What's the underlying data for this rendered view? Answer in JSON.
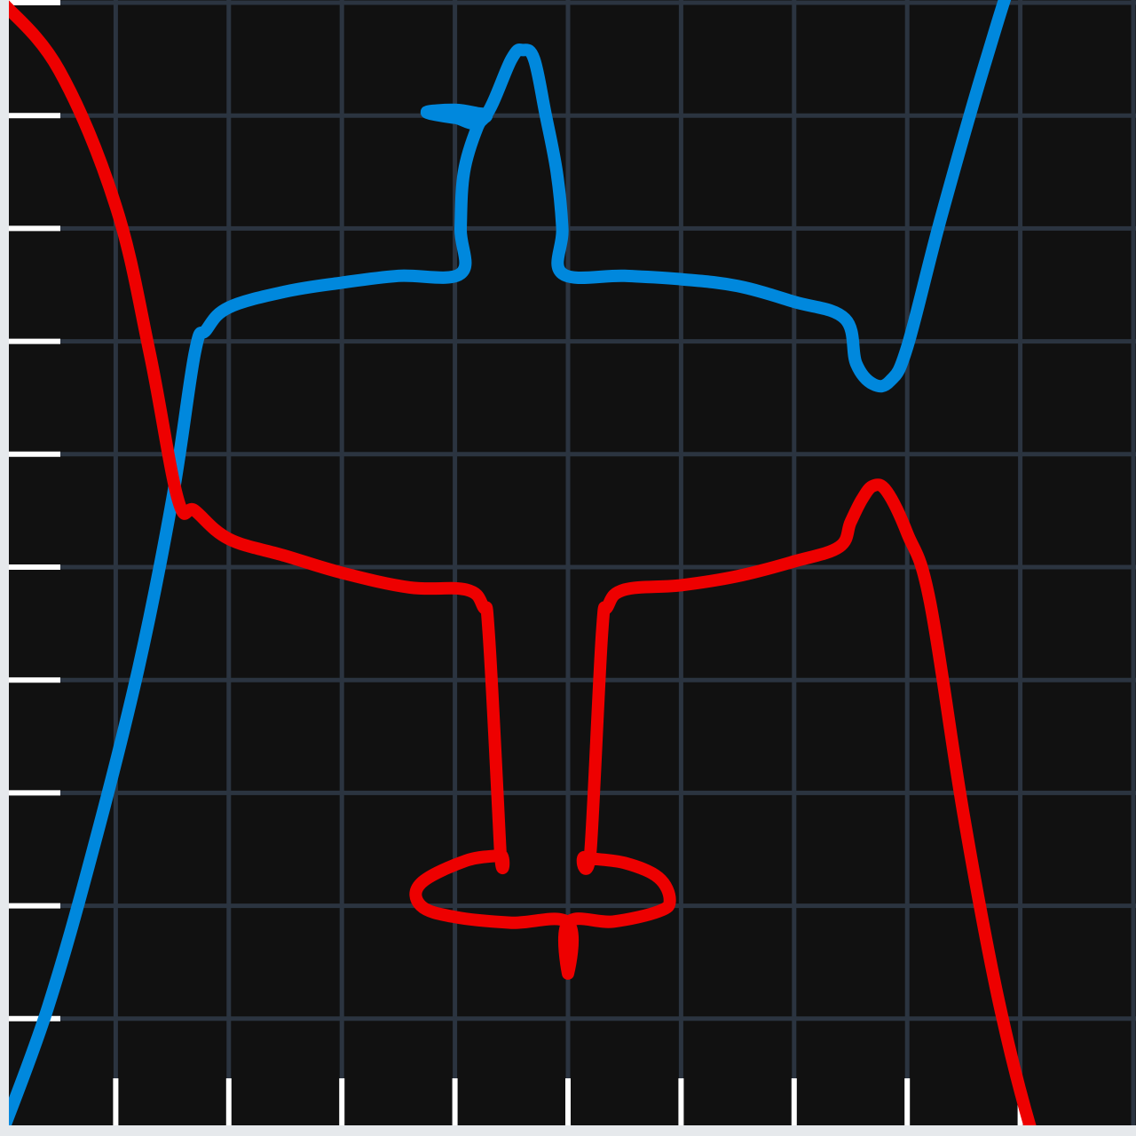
{
  "chart_data": {
    "type": "line",
    "title": "",
    "xlabel": "",
    "ylabel": "",
    "xlim": [
      -5,
      5
    ],
    "ylim": [
      -5,
      5
    ],
    "grid": true,
    "x_ticks": [
      -5,
      -4,
      -3,
      -2,
      -1,
      0,
      1,
      2,
      3,
      4,
      5
    ],
    "y_ticks": [
      -5,
      -4,
      -3,
      -2,
      -1,
      0,
      1,
      2,
      3,
      4,
      5
    ],
    "series": [
      {
        "color": "#0088dd",
        "points": [
          [
            -5,
            -5
          ],
          [
            -4.6,
            -3.9
          ],
          [
            -4.2,
            -2.5
          ],
          [
            -3.8,
            -0.9
          ],
          [
            -3.5,
            0.6
          ],
          [
            -3.3,
            1.9
          ],
          [
            -3.2,
            2.1
          ],
          [
            -3.0,
            2.3
          ],
          [
            -2.5,
            2.44
          ],
          [
            -2.0,
            2.52
          ],
          [
            -1.5,
            2.58
          ],
          [
            -0.95,
            2.6
          ],
          [
            -0.95,
            3.0
          ],
          [
            -0.92,
            3.5
          ],
          [
            -0.8,
            3.9
          ],
          [
            -0.72,
            4.0
          ],
          [
            -0.8,
            4.02
          ],
          [
            -1.0,
            4.05
          ],
          [
            -1.25,
            4.03
          ],
          [
            -1.0,
            3.98
          ],
          [
            -0.75,
            3.97
          ],
          [
            -0.5,
            4.5
          ],
          [
            -0.4,
            4.58
          ],
          [
            -0.3,
            4.5
          ],
          [
            -0.2,
            4.02
          ],
          [
            -0.1,
            3.5
          ],
          [
            -0.05,
            3.0
          ],
          [
            -0.05,
            2.6
          ],
          [
            0.5,
            2.58
          ],
          [
            1.0,
            2.55
          ],
          [
            1.5,
            2.49
          ],
          [
            2.0,
            2.35
          ],
          [
            2.45,
            2.2
          ],
          [
            2.55,
            1.8
          ],
          [
            2.7,
            1.62
          ],
          [
            2.85,
            1.65
          ],
          [
            3.0,
            1.95
          ],
          [
            3.3,
            3.1
          ],
          [
            3.7,
            4.5
          ],
          [
            4.0,
            5.4
          ],
          [
            4.4,
            6.2
          ]
        ]
      },
      {
        "color": "#ee0000",
        "points": [
          [
            -5,
            5
          ],
          [
            -4.5,
            4.4
          ],
          [
            -4.0,
            3.2
          ],
          [
            -3.7,
            1.9
          ],
          [
            -3.45,
            0.6
          ],
          [
            -3.3,
            0.5
          ],
          [
            -3.0,
            0.25
          ],
          [
            -2.5,
            0.1
          ],
          [
            -2.0,
            -0.05
          ],
          [
            -1.4,
            -0.18
          ],
          [
            -0.9,
            -0.2
          ],
          [
            -0.75,
            -0.35
          ],
          [
            -0.7,
            -0.6
          ],
          [
            -0.6,
            -2.5
          ],
          [
            -0.6,
            -2.55
          ],
          [
            -0.9,
            -2.6
          ],
          [
            -1.3,
            -2.8
          ],
          [
            -1.3,
            -3.0
          ],
          [
            -1.0,
            -3.1
          ],
          [
            -0.5,
            -3.15
          ],
          [
            0,
            -3.15
          ],
          [
            0,
            -3.6
          ],
          [
            0,
            -3.15
          ],
          [
            0.4,
            -3.14
          ],
          [
            0.8,
            -3.05
          ],
          [
            0.9,
            -2.95
          ],
          [
            0.8,
            -2.75
          ],
          [
            0.5,
            -2.62
          ],
          [
            0.15,
            -2.57
          ],
          [
            0.2,
            -2.5
          ],
          [
            0.3,
            -0.6
          ],
          [
            0.35,
            -0.35
          ],
          [
            0.5,
            -0.2
          ],
          [
            1.0,
            -0.16
          ],
          [
            1.5,
            -0.08
          ],
          [
            2.0,
            0.05
          ],
          [
            2.4,
            0.18
          ],
          [
            2.5,
            0.4
          ],
          [
            2.6,
            0.6
          ],
          [
            2.7,
            0.72
          ],
          [
            2.82,
            0.67
          ],
          [
            3.0,
            0.3
          ],
          [
            3.2,
            -0.3
          ],
          [
            3.5,
            -2.2
          ],
          [
            3.8,
            -3.8
          ],
          [
            4.1,
            -5.0
          ],
          [
            4.3,
            -5.5
          ]
        ]
      }
    ]
  }
}
